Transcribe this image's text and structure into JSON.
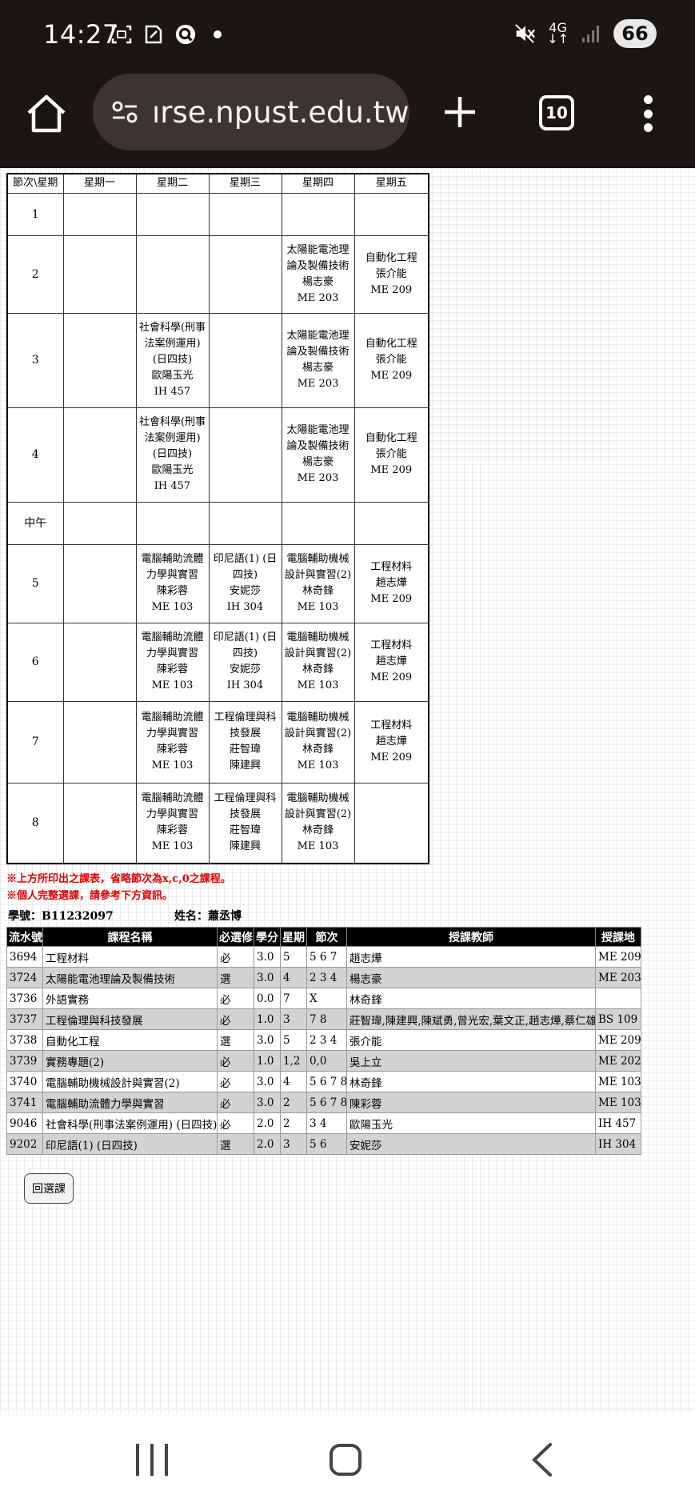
{
  "status": {
    "time": "14:27",
    "network": "4G",
    "battery": "66"
  },
  "browser": {
    "url": "ırse.npust.edu.tw",
    "tab_count": "10"
  },
  "schedule": {
    "headers": [
      "節次\\星期",
      "星期一",
      "星期二",
      "星期三",
      "星期四",
      "星期五"
    ],
    "rows": [
      {
        "period": "1",
        "cells": [
          [],
          [],
          [],
          [],
          []
        ]
      },
      {
        "period": "2",
        "cells": [
          [],
          [],
          [],
          [
            "太陽能電池理",
            "論及製備技術",
            "楊志豪",
            "ME 203"
          ],
          [
            "自動化工程",
            "張介能",
            "ME 209"
          ]
        ]
      },
      {
        "period": "3",
        "cells": [
          [],
          [
            "社會科學(刑事",
            "法案例運用)",
            "(日四技)",
            "歐陽玉光",
            "IH 457"
          ],
          [],
          [
            "太陽能電池理",
            "論及製備技術",
            "楊志豪",
            "ME 203"
          ],
          [
            "自動化工程",
            "張介能",
            "ME 209"
          ]
        ]
      },
      {
        "period": "4",
        "cells": [
          [],
          [
            "社會科學(刑事",
            "法案例運用)",
            "(日四技)",
            "歐陽玉光",
            "IH 457"
          ],
          [],
          [
            "太陽能電池理",
            "論及製備技術",
            "楊志豪",
            "ME 203"
          ],
          [
            "自動化工程",
            "張介能",
            "ME 209"
          ]
        ]
      },
      {
        "period": "中午",
        "cells": [
          [],
          [],
          [],
          [],
          []
        ]
      },
      {
        "period": "5",
        "cells": [
          [],
          [
            "電腦輔助流體",
            "力學與實習",
            "陳彩蓉",
            "ME 103"
          ],
          [
            "印尼語(1) (日",
            "四技)",
            "安妮莎",
            "IH 304"
          ],
          [
            "電腦輔助機械",
            "設計與實習(2)",
            "林奇鋒",
            "ME 103"
          ],
          [
            "工程材料",
            "趙志燁",
            "ME 209"
          ]
        ]
      },
      {
        "period": "6",
        "cells": [
          [],
          [
            "電腦輔助流體",
            "力學與實習",
            "陳彩蓉",
            "ME 103"
          ],
          [
            "印尼語(1) (日",
            "四技)",
            "安妮莎",
            "IH 304"
          ],
          [
            "電腦輔助機械",
            "設計與實習(2)",
            "林奇鋒",
            "ME 103"
          ],
          [
            "工程材料",
            "趙志燁",
            "ME 209"
          ]
        ]
      },
      {
        "period": "7",
        "cells": [
          [],
          [
            "電腦輔助流體",
            "力學與實習",
            "陳彩蓉",
            "ME 103"
          ],
          [
            "工程倫理與科",
            "技發展",
            "莊智瑋",
            "陳建興"
          ],
          [
            "電腦輔助機械",
            "設計與實習(2)",
            "林奇鋒",
            "ME 103"
          ],
          [
            "工程材料",
            "趙志燁",
            "ME 209"
          ]
        ]
      },
      {
        "period": "8",
        "cells": [
          [],
          [
            "電腦輔助流體",
            "力學與實習",
            "陳彩蓉",
            "ME 103"
          ],
          [
            "工程倫理與科",
            "技發展",
            "莊智瑋",
            "陳建興"
          ],
          [
            "電腦輔助機械",
            "設計與實習(2)",
            "林奇鋒",
            "ME 103"
          ],
          []
        ]
      }
    ]
  },
  "notes": [
    "※上方所印出之課表，省略節次為x,c,0之課程。",
    "※個人完整選課，請參考下方資訊。"
  ],
  "student": {
    "id_text": "學號：B11232097",
    "name_text": "姓名：蕭丞博"
  },
  "courses": {
    "headers": [
      "流水號",
      "課程名稱",
      "必選修",
      "學分",
      "星期",
      "節次",
      "授課教師",
      "授課地"
    ],
    "rows": [
      [
        "3694",
        "工程材料",
        "必",
        "3.0",
        "5",
        "5 6 7",
        "趙志燁",
        "ME 209"
      ],
      [
        "3724",
        "太陽能電池理論及製備技術",
        "選",
        "3.0",
        "4",
        "2 3 4",
        "楊志豪",
        "ME 203"
      ],
      [
        "3736",
        "外語實務",
        "必",
        "0.0",
        "7",
        "X",
        "林奇鋒",
        ""
      ],
      [
        "3737",
        "工程倫理與科技發展",
        "必",
        "1.0",
        "3",
        "7 8",
        "莊智瑋,陳建興,陳斌勇,曾光宏,葉文正,趙志燁,蔡仁雄",
        "BS 109"
      ],
      [
        "3738",
        "自動化工程",
        "選",
        "3.0",
        "5",
        "2 3 4",
        "張介能",
        "ME 209"
      ],
      [
        "3739",
        "實務專題(2)",
        "必",
        "1.0",
        "1,2",
        "0,0",
        "吳上立",
        "ME 202"
      ],
      [
        "3740",
        "電腦輔助機械設計與實習(2)",
        "必",
        "3.0",
        "4",
        "5 6 7 8",
        "林奇鋒",
        "ME 103"
      ],
      [
        "3741",
        "電腦輔助流體力學與實習",
        "必",
        "3.0",
        "2",
        "5 6 7 8",
        "陳彩蓉",
        "ME 103"
      ],
      [
        "9046",
        "社會科學(刑事法案例運用) (日四技)",
        "必",
        "2.0",
        "2",
        "3 4",
        "歐陽玉光",
        "IH 457"
      ],
      [
        "9202",
        "印尼語(1) (日四技)",
        "選",
        "2.0",
        "3",
        "5 6",
        "安妮莎",
        "IH 304"
      ]
    ]
  },
  "back_button": "回選課"
}
